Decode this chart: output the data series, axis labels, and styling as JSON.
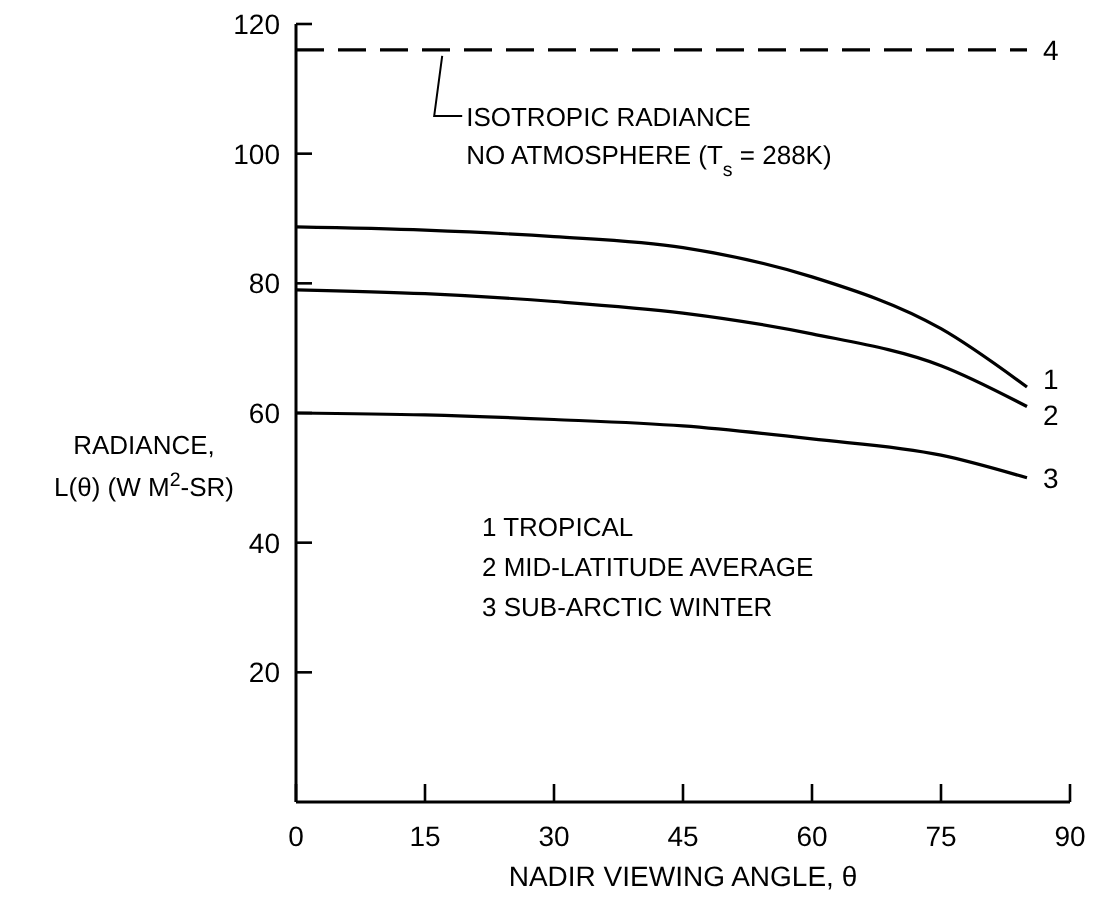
{
  "chart_data": {
    "type": "line",
    "xlabel": "NADIR VIEWING ANGLE, θ",
    "ylabel": "RADIANCE,\nL(θ) (W M$^{2}$-SR)",
    "x": [
      0,
      15,
      30,
      45,
      60,
      75,
      85
    ],
    "series": [
      {
        "name": "1",
        "color": "#000000",
        "values": [
          88.7,
          88.2,
          87.2,
          85.5,
          81,
          73,
          64
        ]
      },
      {
        "name": "2",
        "color": "#000000",
        "values": [
          79,
          78.4,
          77.2,
          75.4,
          72.2,
          67.3,
          61
        ]
      },
      {
        "name": "3",
        "color": "#000000",
        "values": [
          60,
          59.7,
          59,
          58,
          56,
          53.5,
          50
        ]
      },
      {
        "name": "4",
        "color": "#000000",
        "values": [
          116,
          116,
          116,
          116,
          116,
          116,
          116
        ],
        "line_style": "dashed"
      }
    ],
    "xlim": [
      0,
      90
    ],
    "xticks": [
      0,
      15,
      30,
      45,
      60,
      75,
      90
    ],
    "ylim": [
      0,
      120
    ],
    "yticks": [
      20,
      40,
      60,
      80,
      100,
      120
    ],
    "grid": false,
    "legend": false,
    "marker": "none",
    "line_style": "solid",
    "annotations": [
      {
        "text": "ISOTROPIC RADIANCE\nNO ATMOSPHERE (T$_{s}$ = 288K)",
        "x": 17,
        "y": 116
      },
      "1  TROPICAL\n2  MID-LATITUDE AVERAGE\n3  SUB-ARCTIC WINTER"
    ]
  }
}
